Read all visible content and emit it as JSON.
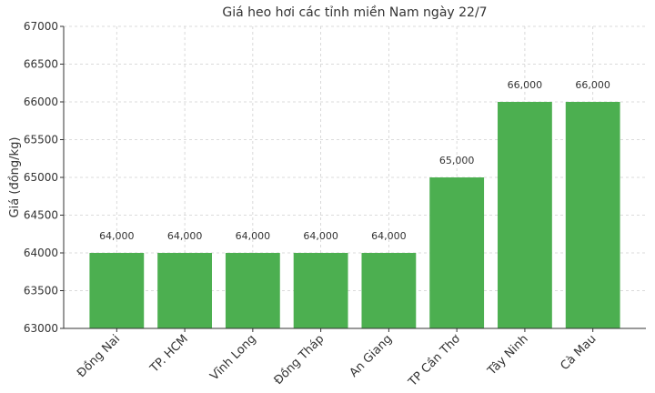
{
  "chart_data": {
    "type": "bar",
    "title": "Giá heo hơi các tỉnh miền Nam ngày 22/7",
    "y_label": "Giá (đồng/kg)",
    "categories": [
      "Đồng Nai",
      "TP. HCM",
      "Vĩnh Long",
      "Đồng Tháp",
      "An Giang",
      "TP Cần Thơ",
      "Tây Ninh",
      "Cà Mau"
    ],
    "values": [
      64000,
      64000,
      64000,
      64000,
      64000,
      65000,
      66000,
      66000
    ],
    "value_labels": [
      "64,000",
      "64,000",
      "64,000",
      "64,000",
      "64,000",
      "65,000",
      "66,000",
      "66,000"
    ],
    "color": "#4caf50",
    "ylim": [
      63000,
      67000
    ],
    "yticks": [
      63000,
      63500,
      64000,
      64500,
      65000,
      65500,
      66000,
      66500,
      67000
    ],
    "grid": true
  }
}
